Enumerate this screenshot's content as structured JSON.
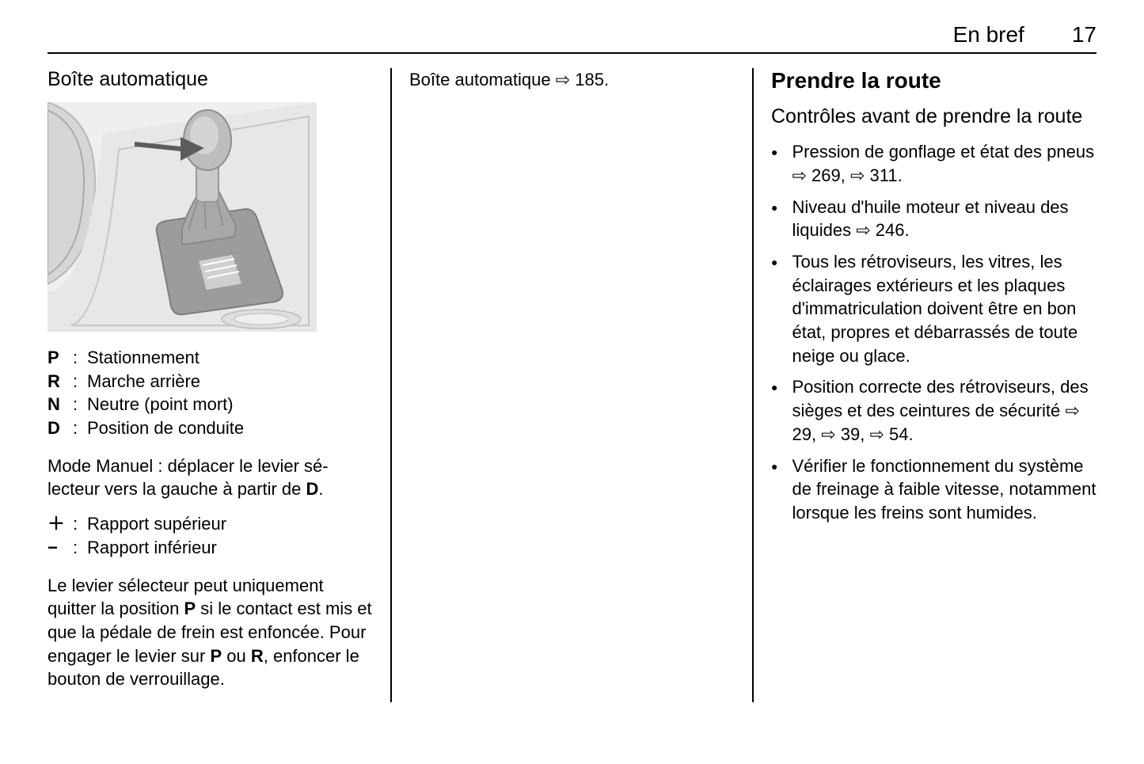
{
  "header": {
    "section": "En bref",
    "page_number": "17"
  },
  "col1": {
    "heading": "Boîte automatique",
    "gear_positions": [
      {
        "key": "P",
        "label": "Stationnement"
      },
      {
        "key": "R",
        "label": "Marche arrière"
      },
      {
        "key": "N",
        "label": "Neutre (point mort)"
      },
      {
        "key": "D",
        "label": "Position de conduite"
      }
    ],
    "manual_mode_pre": "Mode Manuel : déplacer le levier sé­lecteur vers la gauche à partir de ",
    "manual_mode_bold": "D",
    "manual_mode_post": ".",
    "shift_rows": [
      {
        "key": "＋",
        "label": "Rapport supérieur"
      },
      {
        "key": "−",
        "label": "Rapport inférieur"
      }
    ],
    "note_parts": [
      {
        "t": "Le levier sélecteur peut uniquement quitter la position "
      },
      {
        "t": "P",
        "bold": true
      },
      {
        "t": " si le contact est mis et que la pédale de frein est en­foncée. Pour engager le levier sur "
      },
      {
        "t": "P",
        "bold": true
      },
      {
        "t": " ou "
      },
      {
        "t": "R",
        "bold": true
      },
      {
        "t": ", enfoncer le bouton de verrouil­lage."
      }
    ]
  },
  "col2": {
    "ref_text_pre": "Boîte automatique ",
    "ref_page": "185",
    "ref_text_post": "."
  },
  "col3": {
    "heading": "Prendre la route",
    "subheading": "Contrôles avant de prendre la route",
    "items": [
      {
        "parts": [
          {
            "t": "Pression de gonflage et état des pneus "
          },
          {
            "ref": "269"
          },
          {
            "t": ", "
          },
          {
            "ref": "311"
          },
          {
            "t": "."
          }
        ]
      },
      {
        "parts": [
          {
            "t": "Niveau d'huile moteur et niveau des liquides "
          },
          {
            "ref": "246"
          },
          {
            "t": "."
          }
        ]
      },
      {
        "parts": [
          {
            "t": "Tous les rétroviseurs, les vitres, les éclairages extérieurs et les plaques d'immatriculation doi­vent être en bon état, propres et débarrassés de toute neige ou glace."
          }
        ]
      },
      {
        "parts": [
          {
            "t": "Position correcte des rétrovi­seurs, des sièges et des ceintu­res de sécurité "
          },
          {
            "ref": "29"
          },
          {
            "t": ", "
          },
          {
            "ref": "39"
          },
          {
            "t": ", "
          },
          {
            "ref": "54"
          },
          {
            "t": "."
          }
        ]
      },
      {
        "parts": [
          {
            "t": "Vérifier le fonctionnement du sys­tème de freinage à faible vitesse, notamment lorsque les freins sont humides."
          }
        ]
      }
    ]
  },
  "ref_symbol": "⇨",
  "illustration": {
    "bg": "#efefef",
    "knob": "#bdbdbd",
    "leather": "#a8a8a8",
    "base": "#9c9c9c",
    "panel": "#cfcfcf",
    "arrow": "#5c5c5c",
    "line": "#8e8e8e",
    "white": "#ffffff"
  }
}
